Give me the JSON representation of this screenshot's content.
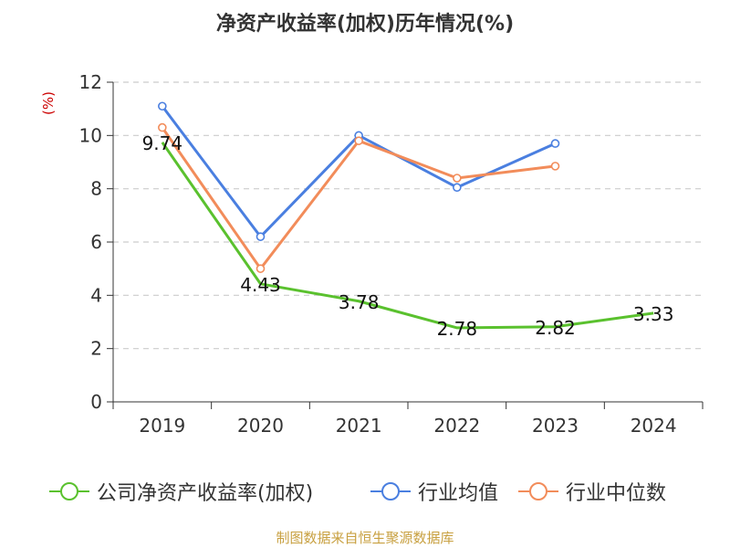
{
  "chart_data": {
    "type": "line",
    "title": "净资产收益率(加权)历年情况(%)",
    "xlabel": "",
    "ylabel": "(%)",
    "categories": [
      "2019",
      "2020",
      "2021",
      "2022",
      "2023",
      "2024"
    ],
    "ylim": [
      0,
      12
    ],
    "yticks": [
      0,
      2,
      4,
      6,
      8,
      10,
      12
    ],
    "grid": true,
    "legend_position": "bottom",
    "series": [
      {
        "name": "公司净资产收益率(加权)",
        "color": "#5ac12e",
        "values": [
          9.74,
          4.43,
          3.78,
          2.78,
          2.82,
          3.33
        ],
        "labels": [
          "9.74",
          "4.43",
          "3.78",
          "2.78",
          "2.82",
          "3.33"
        ]
      },
      {
        "name": "行业均值",
        "color": "#4a7fe0",
        "values": [
          11.1,
          6.2,
          10.0,
          8.05,
          9.7,
          null
        ]
      },
      {
        "name": "行业中位数",
        "color": "#f28c5a",
        "values": [
          10.3,
          5.0,
          9.8,
          8.4,
          8.85,
          null
        ]
      }
    ]
  },
  "source": "制图数据来自恒生聚源数据库"
}
